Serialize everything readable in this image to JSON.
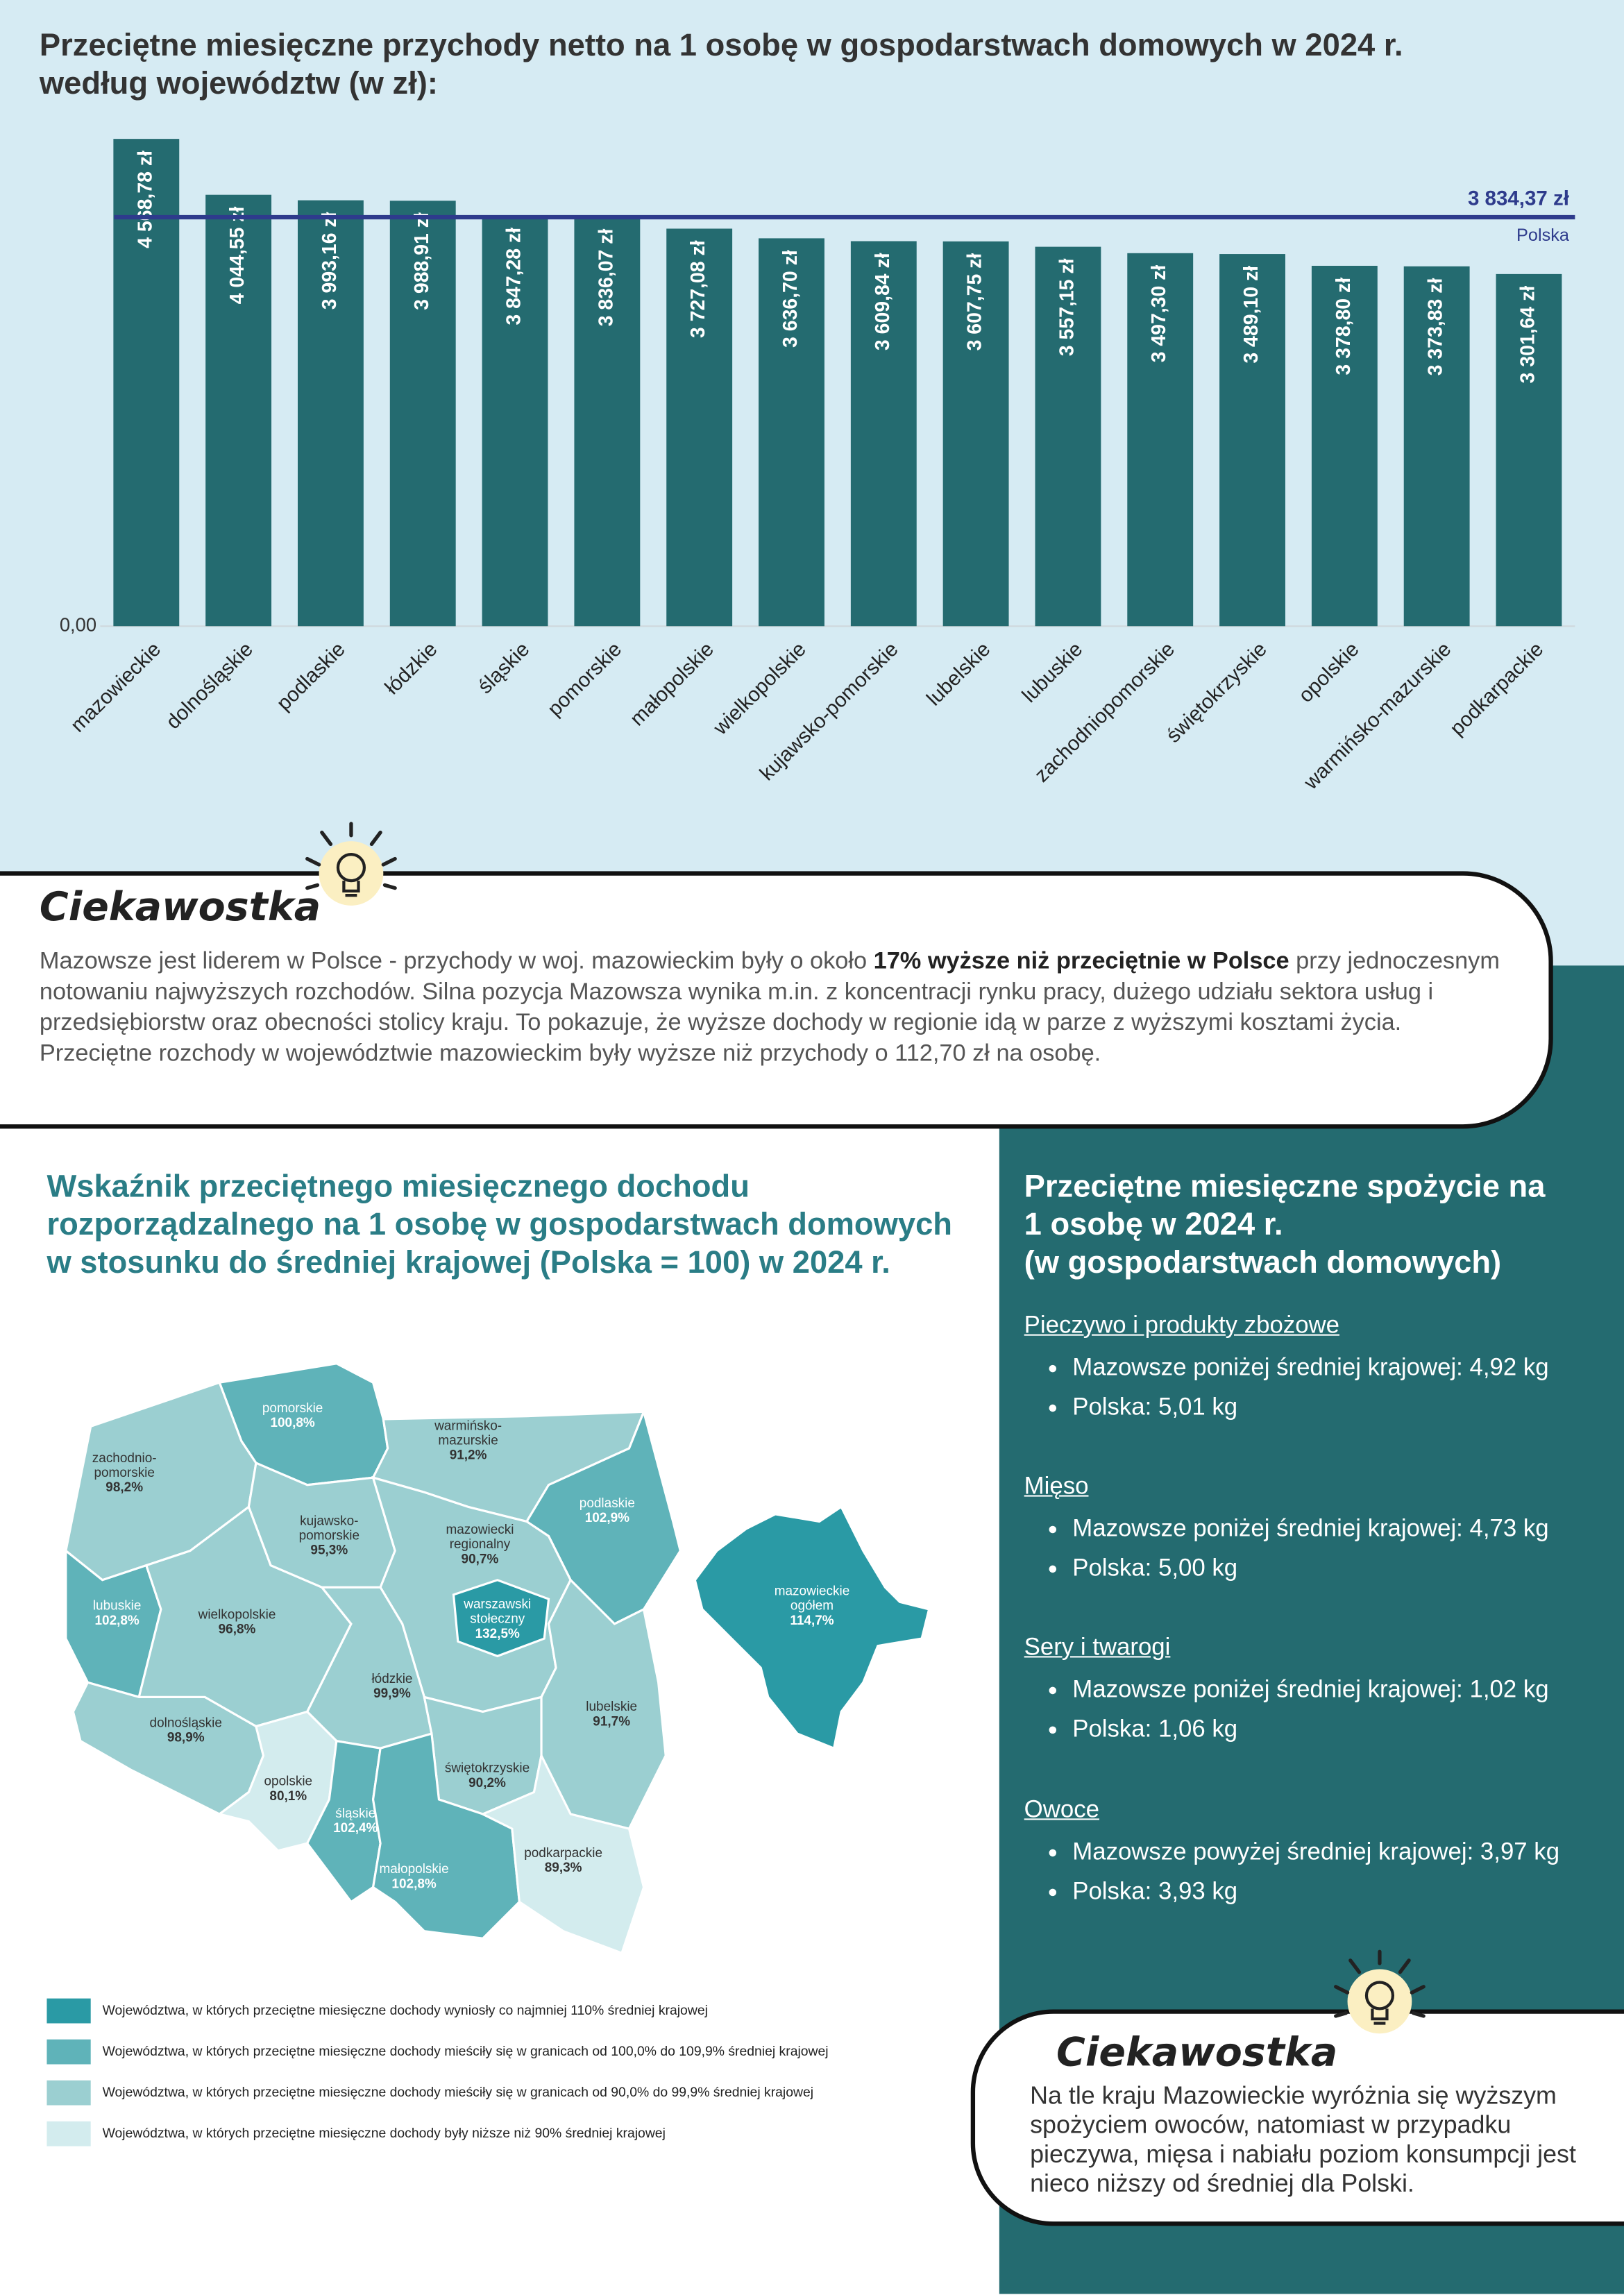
{
  "chart_data": {
    "type": "bar",
    "title": "Przeciętne miesięczne przychody netto na 1 osobę w gospodarstwach domowych w 2024 r. według województw (w zł):",
    "categories": [
      "mazowieckie",
      "dolnośląskie",
      "podlaskie",
      "łódzkie",
      "śląskie",
      "pomorskie",
      "małopolskie",
      "wielkopolskie",
      "kujawsko-pomorskie",
      "lubelskie",
      "lubuskie",
      "zachodniopomorskie",
      "świętokrzyskie",
      "opolskie",
      "warmińsko-mazurskie",
      "podkarpackie"
    ],
    "values": [
      4568.78,
      4044.55,
      3993.16,
      3988.91,
      3847.28,
      3836.07,
      3727.08,
      3636.7,
      3609.84,
      3607.75,
      3557.15,
      3497.3,
      3489.1,
      3378.8,
      3373.83,
      3301.64
    ],
    "value_labels": [
      "4 568,78 zł",
      "4 044,55 zł",
      "3 993,16 zł",
      "3 988,91 zł",
      "3 847,28 zł",
      "3 836,07 zł",
      "3 727,08 zł",
      "3 636,70 zł",
      "3 609,84 zł",
      "3 607,75 zł",
      "3 557,15 zł",
      "3 497,30 zł",
      "3 489,10 zł",
      "3 378,80 zł",
      "3 373,83 zł",
      "3 301,64 zł"
    ],
    "color": "#246b70",
    "ylim": [
      0,
      5000
    ],
    "yticks": [
      {
        "value": 0,
        "label": "0,00"
      }
    ],
    "grid": true,
    "reference": {
      "name": "Polska",
      "value": 3834.37,
      "label": "3 834,37 zł",
      "color": "#2e3b8c"
    }
  },
  "fact_1": {
    "title": "Ciekawostka",
    "text_before": "Mazowsze jest  liderem w Polsce - przychody w woj. mazowieckim były o około ",
    "bold": "17% wyższe niż przeciętnie w Polsce",
    "text_after": " przy jednoczesnym notowaniu najwyższych rozchodów. Silna pozycja Mazowsza wynika m.in. z koncentracji rynku pracy, dużego udziału sektora usług i przedsiębiorstw oraz obecności stolicy kraju. To pokazuje, że wyższe dochody w regionie idą w parze z wyższymi kosztami życia.",
    "text_2": "Przeciętne rozchody w województwie mazowieckim były wyższe niż przychody o 112,70 zł na osobę."
  },
  "map": {
    "title": "Wskaźnik przeciętnego miesięcznego dochodu rozporządzalnego na 1 osobę w gospodarstwach domowych w stosunku do średniej krajowej (Polska = 100) w 2024 r.",
    "regions": [
      {
        "name": [
          "pomorskie"
        ],
        "value_label": "100,8%",
        "color": "#5fb3b9"
      },
      {
        "name": [
          "warmińsko-",
          "mazurskie"
        ],
        "value_label": "91,2%",
        "color": "#9bcfd1"
      },
      {
        "name": [
          "zachodnio-",
          "pomorskie"
        ],
        "value_label": "98,2%",
        "color": "#9bcfd1"
      },
      {
        "name": [
          "podlaskie"
        ],
        "value_label": "102,9%",
        "color": "#5fb3b9"
      },
      {
        "name": [
          "kujawsko-",
          "pomorskie"
        ],
        "value_label": "95,3%",
        "color": "#9bcfd1"
      },
      {
        "name": [
          "mazowiecki",
          "regionalny"
        ],
        "value_label": "90,7%",
        "color": "#9bcfd1"
      },
      {
        "name": [
          "warszawski",
          "stołeczny"
        ],
        "value_label": "132,5%",
        "color": "#2a9aa5"
      },
      {
        "name": [
          "lubuskie"
        ],
        "value_label": "102,8%",
        "color": "#5fb3b9"
      },
      {
        "name": [
          "wielkopolskie"
        ],
        "value_label": "96,8%",
        "color": "#9bcfd1"
      },
      {
        "name": [
          "łódzkie"
        ],
        "value_label": "99,9%",
        "color": "#9bcfd1"
      },
      {
        "name": [
          "lubelskie"
        ],
        "value_label": "91,7%",
        "color": "#9bcfd1"
      },
      {
        "name": [
          "dolnośląskie"
        ],
        "value_label": "98,9%",
        "color": "#9bcfd1"
      },
      {
        "name": [
          "opolskie"
        ],
        "value_label": "80,1%",
        "color": "#d3ecee"
      },
      {
        "name": [
          "świętokrzyskie"
        ],
        "value_label": "90,2%",
        "color": "#9bcfd1"
      },
      {
        "name": [
          "śląskie"
        ],
        "value_label": "102,4%",
        "color": "#5fb3b9"
      },
      {
        "name": [
          "małopolskie"
        ],
        "value_label": "102,8%",
        "color": "#5fb3b9"
      },
      {
        "name": [
          "podkarpackie"
        ],
        "value_label": "89,3%",
        "color": "#d3ecee"
      },
      {
        "name": [
          "mazowieckie",
          "ogółem"
        ],
        "value_label": "114,7%",
        "color": "#2a9aa5"
      }
    ],
    "legend": [
      {
        "label": "Województwa, w których przeciętne miesięczne dochody wyniosły co najmniej 110% średniej krajowej",
        "color": "#2a9aa5"
      },
      {
        "label": "Województwa, w których przeciętne miesięczne dochody mieściły się w granicach od 100,0% do 109,9% średniej krajowej",
        "color": "#5fb3b9"
      },
      {
        "label": "Województwa, w których przeciętne miesięczne dochody mieściły się w granicach od 90,0% do 99,9% średniej krajowej",
        "color": "#9bcfd1"
      },
      {
        "label": "Województwa, w których przeciętne miesięczne dochody były niższe niż 90% średniej krajowej",
        "color": "#d3ecee"
      }
    ]
  },
  "consumption": {
    "title_lines": [
      "Przeciętne miesięczne spożycie na",
      "1 osobę w 2024 r.",
      "(w gospodarstwach domowych)"
    ],
    "sections": [
      {
        "heading": "Pieczywo i produkty zbożowe",
        "bullets": [
          "Mazowsze poniżej średniej krajowej: 4,92 kg",
          "Polska: 5,01 kg"
        ]
      },
      {
        "heading": "Mięso",
        "bullets": [
          "Mazowsze poniżej średniej krajowej: 4,73 kg",
          "Polska: 5,00 kg"
        ]
      },
      {
        "heading": "Sery i twarogi",
        "bullets": [
          "Mazowsze poniżej średniej krajowej: 1,02 kg",
          "Polska: 1,06 kg"
        ]
      },
      {
        "heading": "Owoce",
        "bullets": [
          "Mazowsze powyżej średniej krajowej: 3,97 kg",
          "Polska: 3,93 kg"
        ]
      }
    ]
  },
  "fact_2": {
    "title": "Ciekawostka",
    "text": "Na tle kraju Mazowieckie wyróżnia się wyższym spożyciem owoców, natomiast w przypadku pieczywa, mięsa i nabiału poziom konsumpcji jest nieco niższy od średniej dla Polski."
  }
}
